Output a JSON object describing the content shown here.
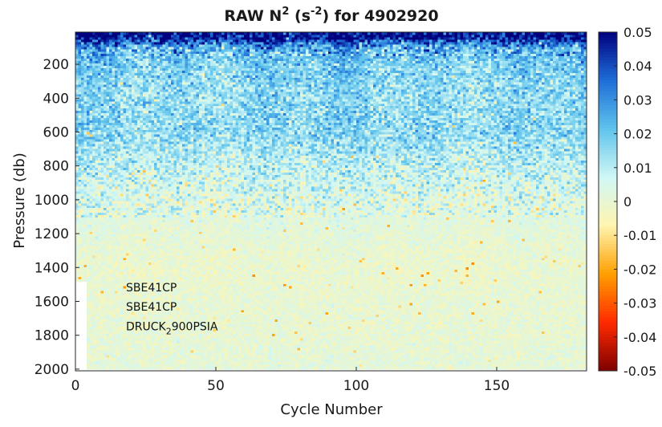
{
  "chart_data": {
    "type": "heatmap",
    "title_base": "RAW N",
    "title_sup1": "2",
    "title_mid": " (s",
    "title_sup2": "-2",
    "title_end": ") for 4902920",
    "xlabel": "Cycle Number",
    "ylabel": "Pressure (db)",
    "xlim": [
      0,
      182
    ],
    "ylim": [
      10,
      2010
    ],
    "y_reversed": true,
    "xticks": [
      0,
      50,
      100,
      150
    ],
    "xtick_labels": [
      "0",
      "50",
      "100",
      "150"
    ],
    "yticks": [
      200,
      400,
      600,
      800,
      1000,
      1200,
      1400,
      1600,
      1800,
      2000
    ],
    "ytick_labels": [
      "200",
      "400",
      "600",
      "800",
      "1000",
      "1200",
      "1400",
      "1600",
      "1800",
      "2000"
    ],
    "colorbar": {
      "clim": [
        -0.05,
        0.05
      ],
      "ticks": [
        0.05,
        0.04,
        0.03,
        0.02,
        0.01,
        0,
        -0.01,
        -0.02,
        -0.03,
        -0.04,
        -0.05
      ],
      "tick_labels": [
        "0.05",
        "0.04",
        "0.03",
        "0.02",
        "0.01",
        "0",
        "-0.01",
        "-0.02",
        "-0.03",
        "-0.04",
        "-0.05"
      ],
      "colormap": [
        "#7f0000",
        "#ff2a00",
        "#ff9f00",
        "#fff5b0",
        "#d0f7f5",
        "#5fc3ec",
        "#1e6ed8",
        "#00007f"
      ]
    },
    "annotations": [
      "SBE41CP",
      "SBE41CP",
      "DRUCK",
      "2",
      "900PSIA"
    ],
    "profile": [
      {
        "pressure": 40,
        "median_n2": 0.05
      },
      {
        "pressure": 100,
        "median_n2": 0.025
      },
      {
        "pressure": 200,
        "median_n2": 0.018
      },
      {
        "pressure": 400,
        "median_n2": 0.015
      },
      {
        "pressure": 600,
        "median_n2": 0.016
      },
      {
        "pressure": 800,
        "median_n2": 0.009
      },
      {
        "pressure": 1000,
        "median_n2": 0.004
      },
      {
        "pressure": 1200,
        "median_n2": 0.001
      },
      {
        "pressure": 1400,
        "median_n2": -0.001
      },
      {
        "pressure": 1600,
        "median_n2": 0.0
      },
      {
        "pressure": 1800,
        "median_n2": 0.0
      },
      {
        "pressure": 2000,
        "median_n2": 0.001
      }
    ]
  }
}
